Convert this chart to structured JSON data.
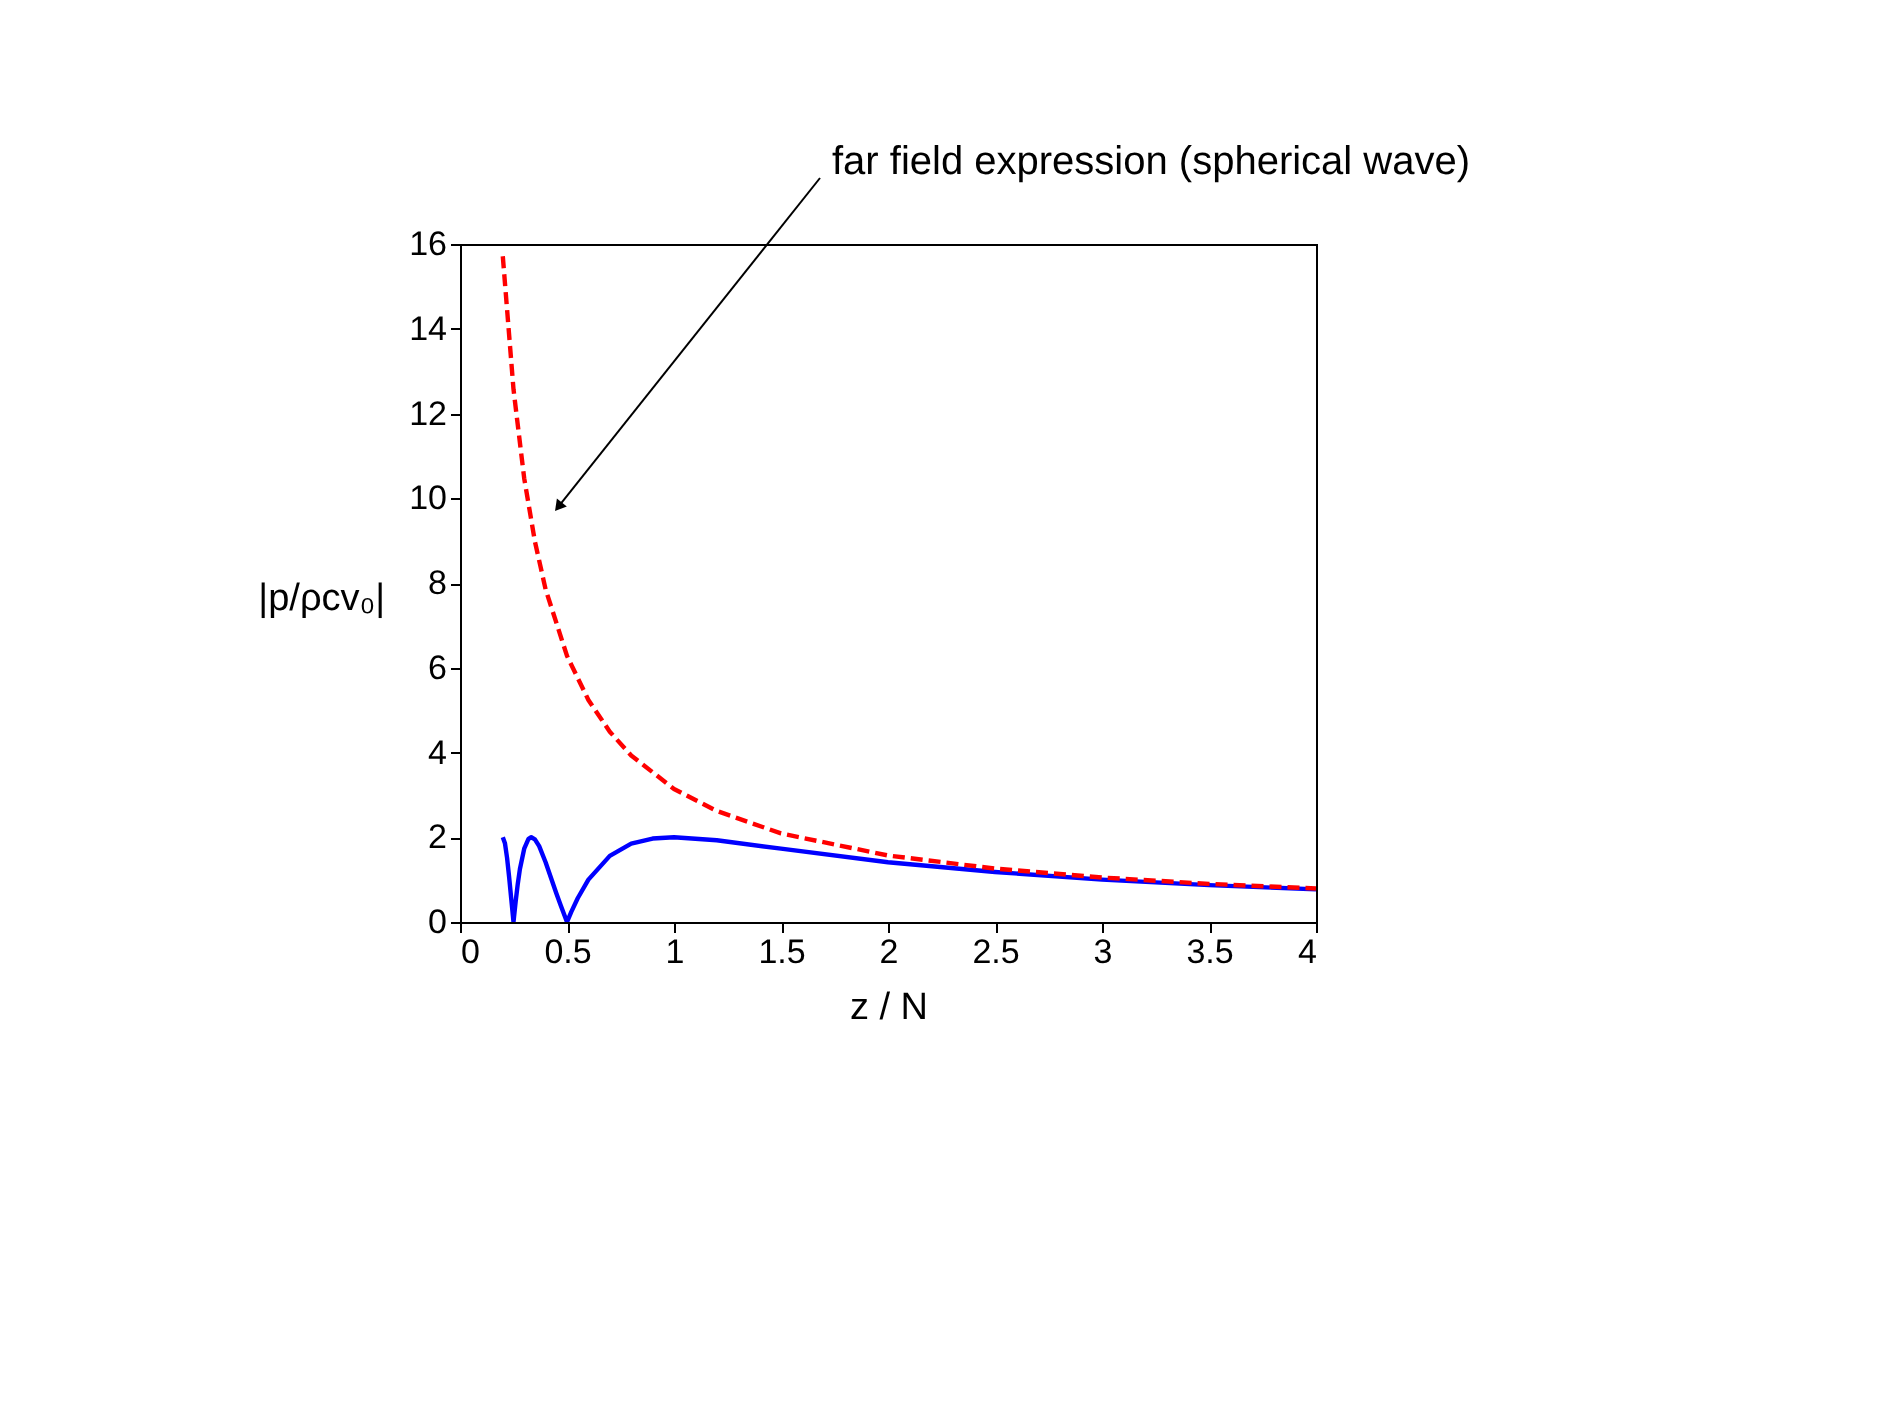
{
  "chart_data": {
    "type": "line",
    "xlabel": "z / N",
    "ylabel": "|p/ρcv₀|",
    "xlim": [
      0,
      4
    ],
    "xticks": [
      0,
      0.5,
      1,
      1.5,
      2,
      2.5,
      3,
      3.5,
      4
    ],
    "ylim": [
      0,
      16
    ],
    "yticks": [
      0,
      2,
      4,
      6,
      8,
      10,
      12,
      14,
      16
    ],
    "grid": false,
    "annotations": [
      {
        "text": "far field expression (spherical wave)",
        "x": 0.46,
        "y": 9.8
      }
    ],
    "series": [
      {
        "color": "#0000ff",
        "line_style": "solid",
        "x": [
          0.2,
          0.21,
          0.22,
          0.23,
          0.24,
          0.25,
          0.26,
          0.27,
          0.28,
          0.3,
          0.32,
          0.333,
          0.35,
          0.37,
          0.4,
          0.45,
          0.47,
          0.5,
          0.52,
          0.55,
          0.6,
          0.7,
          0.8,
          0.9,
          1.0,
          1.2,
          1.5,
          2,
          2.5,
          3,
          3.5,
          4
        ],
        "values": [
          2,
          1.86,
          1.51,
          1.04,
          0.52,
          0,
          0.48,
          0.9,
          1.25,
          1.73,
          1.96,
          2,
          1.95,
          1.79,
          1.41,
          0.68,
          0.4,
          0,
          0.24,
          0.56,
          1.0,
          1.56,
          1.85,
          1.97,
          2,
          1.93,
          1.73,
          1.41,
          1.18,
          1.0,
          0.87,
          0.77
        ]
      },
      {
        "color": "#ff0000",
        "line_style": "dashed",
        "x": [
          0.2,
          0.25,
          0.3,
          0.35,
          0.4,
          0.5,
          0.6,
          0.7,
          0.8,
          1.0,
          1.2,
          1.5,
          2,
          2.5,
          3,
          3.5,
          4
        ],
        "values": [
          15.71,
          12.57,
          10.47,
          8.98,
          7.85,
          6.28,
          5.24,
          4.49,
          3.93,
          3.14,
          2.62,
          2.09,
          1.57,
          1.26,
          1.05,
          0.9,
          0.79
        ]
      }
    ]
  }
}
